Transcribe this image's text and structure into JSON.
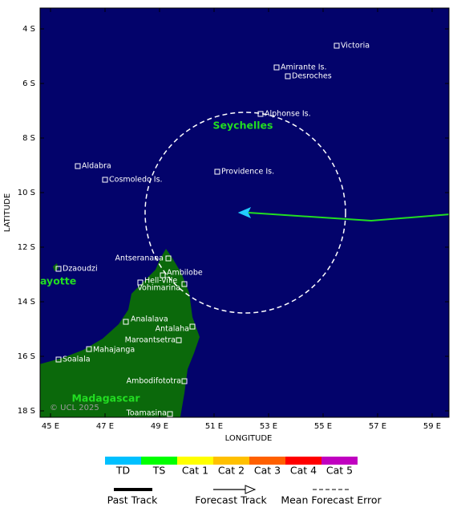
{
  "map": {
    "lat_labels": [
      "4 S",
      "6 S",
      "8 S",
      "10 S",
      "12 S",
      "14 S",
      "16 S",
      "18 S"
    ],
    "lon_labels": [
      "45 E",
      "47 E",
      "49 E",
      "51 E",
      "53 E",
      "55 E",
      "57 E",
      "59 E"
    ],
    "x_axis_title": "LONGITUDE",
    "y_axis_title": "LATITUDE",
    "regions": [
      "Seychelles",
      "ayotte",
      "Madagascar"
    ],
    "places": [
      "Victoria",
      "Amirante Is.",
      "Desroches",
      "Alphonse Is.",
      "Providence Is.",
      "Aldabra",
      "Cosmoledo Is.",
      "Dzaoudzi",
      "Antseranana",
      "Ambilobe",
      "Hell-Ville",
      "Vohimarina",
      "Analalava",
      "Antalaha",
      "Maroantsetra",
      "Mahajanga",
      "Soalala",
      "Ambodifototra",
      "Toamasina"
    ],
    "copyright": "© UCL 2025"
  },
  "legend": {
    "categories": [
      "TD",
      "TS",
      "Cat 1",
      "Cat 2",
      "Cat 3",
      "Cat 4",
      "Cat 5"
    ],
    "tracks": [
      "Past Track",
      "Forecast Track",
      "Mean Forecast Error"
    ]
  }
}
